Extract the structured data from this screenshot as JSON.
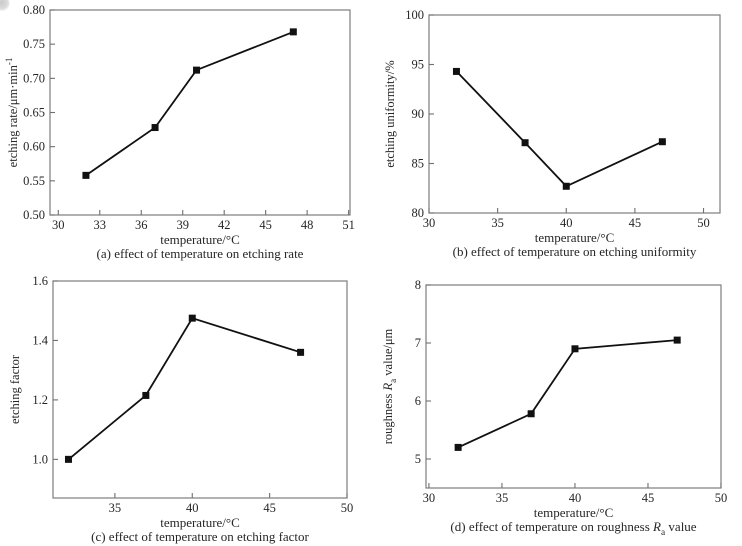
{
  "figure": {
    "background": "#ffffff"
  },
  "style": {
    "axis_color": "#7d7d7d",
    "tick_color": "#6f6f6f",
    "text_color": "#262626",
    "line_color": "#111111",
    "marker_color": "#111111"
  },
  "chart_data": [
    {
      "id": "a",
      "type": "line",
      "x": [
        32,
        37,
        40,
        47
      ],
      "y": [
        0.558,
        0.628,
        0.712,
        0.768
      ],
      "xlim": [
        29.4,
        51.1
      ],
      "ylim": [
        0.5,
        0.8
      ],
      "xticks": [
        30,
        33,
        36,
        39,
        42,
        45,
        48,
        51
      ],
      "xtick_labels": [
        "30",
        "33",
        "36",
        "39",
        "42",
        "45",
        "48",
        "51"
      ],
      "yticks": [
        0.5,
        0.55,
        0.6,
        0.65,
        0.7,
        0.75,
        0.8
      ],
      "ytick_labels": [
        "0.50",
        "0.55",
        "0.60",
        "0.65",
        "0.70",
        "0.75",
        "0.80"
      ],
      "grid": false,
      "legend": null,
      "marker": "square",
      "xlabel_parts": [
        {
          "t": "temperature/°C",
          "s": "n"
        }
      ],
      "ylabel_parts": [
        {
          "t": "etching rate/μm·min",
          "s": "n"
        },
        {
          "t": "-1",
          "s": "sup"
        }
      ],
      "caption_parts": [
        {
          "t": "(a) effect of temperature on etching rate",
          "s": "n"
        }
      ]
    },
    {
      "id": "b",
      "type": "line",
      "x": [
        32,
        37,
        40,
        47
      ],
      "y": [
        94.3,
        87.1,
        82.7,
        87.2
      ],
      "xlim": [
        30,
        51.2
      ],
      "ylim": [
        80,
        100
      ],
      "xticks": [
        30,
        35,
        40,
        45,
        50
      ],
      "xtick_labels": [
        "30",
        "35",
        "40",
        "45",
        "50"
      ],
      "yticks": [
        80,
        85,
        90,
        95,
        100
      ],
      "ytick_labels": [
        "80",
        "85",
        "90",
        "95",
        "100"
      ],
      "grid": false,
      "legend": null,
      "marker": "square",
      "xlabel_parts": [
        {
          "t": "temperature/°C",
          "s": "n"
        }
      ],
      "ylabel_parts": [
        {
          "t": "etching uniformity/%",
          "s": "n"
        }
      ],
      "caption_parts": [
        {
          "t": "(b) effect of temperature on etching uniformity",
          "s": "n"
        }
      ]
    },
    {
      "id": "c",
      "type": "line",
      "x": [
        32,
        37,
        40,
        47
      ],
      "y": [
        1.0,
        1.215,
        1.475,
        1.36
      ],
      "xlim": [
        31,
        50
      ],
      "ylim": [
        0.87,
        1.6
      ],
      "xticks": [
        35,
        40,
        45,
        50
      ],
      "xtick_labels": [
        "35",
        "40",
        "45",
        "50"
      ],
      "yticks": [
        1.0,
        1.2,
        1.4,
        1.6
      ],
      "ytick_labels": [
        "1.0",
        "1.2",
        "1.4",
        "1.6"
      ],
      "grid": false,
      "legend": null,
      "marker": "square",
      "xlabel_parts": [
        {
          "t": "temperature/°C",
          "s": "n"
        }
      ],
      "ylabel_parts": [
        {
          "t": "etching factor",
          "s": "n"
        }
      ],
      "caption_parts": [
        {
          "t": "(c) effect of temperature on etching factor",
          "s": "n"
        }
      ]
    },
    {
      "id": "d",
      "type": "line",
      "x": [
        32,
        37,
        40,
        47
      ],
      "y": [
        5.2,
        5.78,
        6.9,
        7.05
      ],
      "xlim": [
        29.8,
        50
      ],
      "ylim": [
        4.5,
        8
      ],
      "xticks": [
        30,
        35,
        40,
        45,
        50
      ],
      "xtick_labels": [
        "30",
        "35",
        "40",
        "45",
        "50"
      ],
      "yticks": [
        5,
        6,
        7,
        8
      ],
      "ytick_labels": [
        "5",
        "6",
        "7",
        "8"
      ],
      "grid": false,
      "legend": null,
      "marker": "square",
      "xlabel_parts": [
        {
          "t": "temperature/°C",
          "s": "n"
        }
      ],
      "ylabel_parts": [
        {
          "t": "roughness ",
          "s": "n"
        },
        {
          "t": "R",
          "s": "i"
        },
        {
          "t": "a",
          "s": "sub"
        },
        {
          "t": " value/μm",
          "s": "n"
        }
      ],
      "caption_parts": [
        {
          "t": "(d) effect of temperature on roughness ",
          "s": "n"
        },
        {
          "t": "R",
          "s": "i"
        },
        {
          "t": "a",
          "s": "sub"
        },
        {
          "t": " value",
          "s": "n"
        }
      ]
    }
  ]
}
